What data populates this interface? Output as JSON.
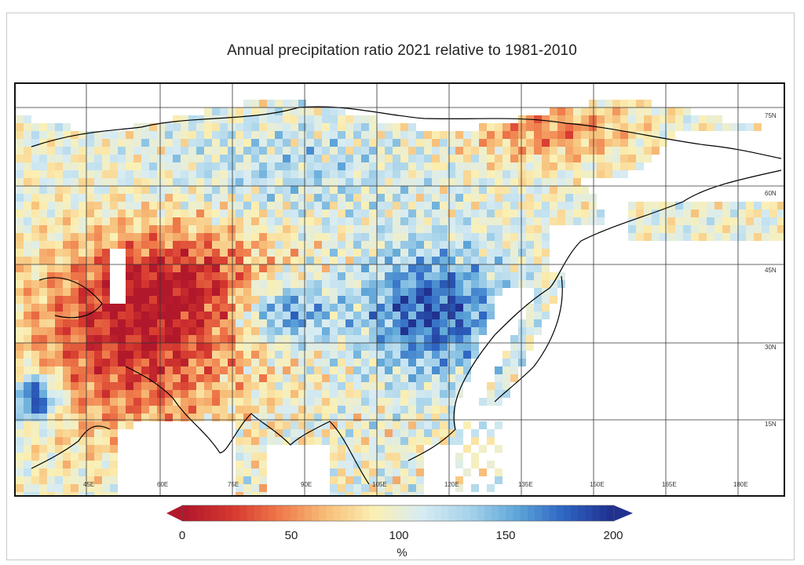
{
  "title": "Annual precipitation ratio 2021 relative to 1981-2010",
  "lat_labels": [
    "75N",
    "60N",
    "45N",
    "30N",
    "15N"
  ],
  "lon_labels": [
    "45E",
    "60E",
    "75E",
    "90E",
    "105E",
    "120E",
    "135E",
    "150E",
    "165E",
    "180E"
  ],
  "colorbar": {
    "ticks": [
      "0",
      "50",
      "100",
      "150",
      "200"
    ],
    "unit": "%",
    "extend": "both",
    "colors": [
      "#b2182b",
      "#d6392f",
      "#ef7a4a",
      "#f7c07a",
      "#fbf0b4",
      "#d8ecf2",
      "#a7d3ea",
      "#5fa7d9",
      "#2e66c3",
      "#21318f"
    ]
  },
  "map": {
    "projection": "lat-lon",
    "lon_range": [
      "30E",
      "195E"
    ],
    "lat_range": [
      "5S",
      "82N"
    ],
    "grid": true,
    "coastlines": true,
    "missing_color": "#ffffff"
  }
}
